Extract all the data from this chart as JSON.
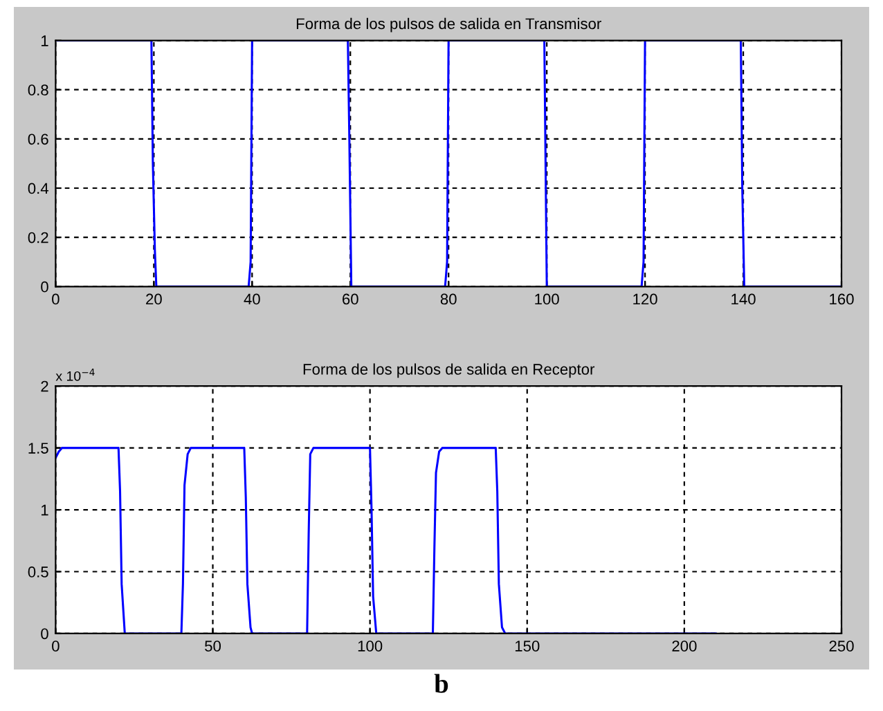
{
  "chart_data": [
    {
      "type": "line",
      "title": "Forma de los pulsos de salida en Transmisor",
      "series": [
        {
          "color": "#0000ff",
          "x": [
            0,
            19.5,
            19.8,
            20.2,
            20.5,
            39.3,
            39.7,
            40,
            59.5,
            59.8,
            60.2,
            79.3,
            79.7,
            80,
            99.5,
            99.8,
            100,
            119.3,
            119.7,
            120,
            139.5,
            139.8,
            140.2,
            160
          ],
          "values": [
            1,
            1,
            0.5,
            0.15,
            0,
            0,
            0.1,
            1,
            1,
            0.6,
            0,
            0,
            0.1,
            1,
            1,
            0.4,
            0,
            0,
            0.1,
            1,
            1,
            0.4,
            0,
            0
          ]
        }
      ],
      "xlim": [
        0,
        160
      ],
      "xticks": [
        0,
        20,
        40,
        60,
        80,
        100,
        120,
        140,
        160
      ],
      "ylim": [
        0,
        1
      ],
      "yticks": [
        0,
        0.2,
        0.4,
        0.6,
        0.8,
        1
      ],
      "grid": true,
      "line_style": "solid",
      "marker": "none"
    },
    {
      "type": "line",
      "title": "Forma de los pulsos de salida en Receptor",
      "series": [
        {
          "color": "#0000ff",
          "x": [
            0,
            1,
            2,
            20,
            20.5,
            21,
            22,
            40,
            40.5,
            41,
            42,
            43,
            60,
            60.5,
            61,
            62,
            62.5,
            80,
            80.5,
            81,
            82,
            100,
            100.5,
            101,
            102,
            120,
            120.5,
            121,
            122,
            123,
            140,
            140.5,
            141,
            142,
            143,
            210
          ],
          "values": [
            1.42,
            1.47,
            1.5,
            1.5,
            1.15,
            0.4,
            0,
            0,
            0.4,
            1.2,
            1.45,
            1.5,
            1.5,
            1.1,
            0.4,
            0.05,
            0,
            0,
            0.8,
            1.45,
            1.5,
            1.5,
            1.0,
            0.3,
            0,
            0,
            0.7,
            1.3,
            1.47,
            1.5,
            1.5,
            1.15,
            0.4,
            0.05,
            0,
            0
          ]
        }
      ],
      "xlim": [
        0,
        250
      ],
      "xticks": [
        0,
        50,
        100,
        150,
        200,
        250
      ],
      "ylim": [
        0,
        2
      ],
      "yticks": [
        0,
        0.5,
        1,
        1.5,
        2
      ],
      "grid": true,
      "line_style": "solid",
      "marker": "none",
      "annotations": [
        "x 10$^{−4}$",
        "b"
      ]
    }
  ]
}
